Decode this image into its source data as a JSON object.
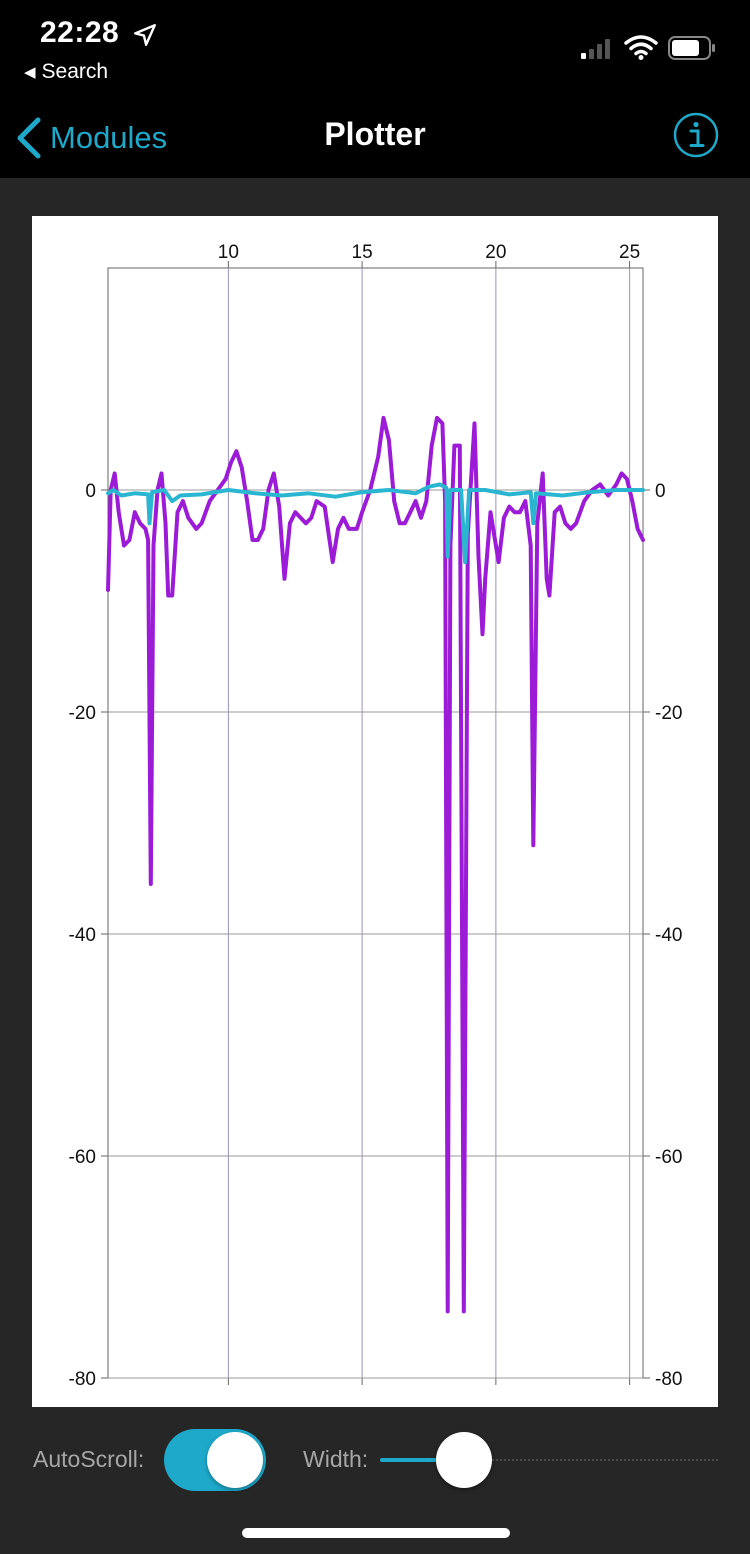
{
  "status_bar": {
    "time": "22:28",
    "back_app": "Search",
    "icons": [
      "location-arrow-icon",
      "cellular-signal-icon",
      "wifi-icon",
      "battery-icon"
    ]
  },
  "nav": {
    "back_label": "Modules",
    "title": "Plotter",
    "info_icon": "info-circle-icon"
  },
  "colors": {
    "accent": "#1ea8c9",
    "series_1": "#9b1bd6",
    "series_2": "#2ab6d0",
    "background": "#262626"
  },
  "chart_data": {
    "type": "line",
    "xlim": [
      5.5,
      25.5
    ],
    "ylim": [
      -80,
      20
    ],
    "x_ticks": [
      10,
      15,
      20,
      25
    ],
    "y_ticks": [
      0,
      -20,
      -40,
      -60,
      -80
    ],
    "x_tick_labels": [
      "10",
      "15",
      "20",
      "25"
    ],
    "y_tick_labels": [
      "0",
      "-20",
      "-40",
      "-60",
      "-80"
    ],
    "grid": true,
    "x_axis_position": "top",
    "y_axis_position": "left and right",
    "series": [
      {
        "color": "#9b1bd6",
        "points": [
          [
            5.5,
            -9
          ],
          [
            5.6,
            0
          ],
          [
            5.75,
            1.5
          ],
          [
            5.9,
            -2
          ],
          [
            6.1,
            -5
          ],
          [
            6.3,
            -4.5
          ],
          [
            6.5,
            -2
          ],
          [
            6.7,
            -3
          ],
          [
            6.9,
            -3.5
          ],
          [
            7.0,
            -4.5
          ],
          [
            7.1,
            -35.5
          ],
          [
            7.2,
            -5
          ],
          [
            7.35,
            0
          ],
          [
            7.5,
            1.5
          ],
          [
            7.65,
            -3
          ],
          [
            7.75,
            -9.5
          ],
          [
            7.9,
            -9.5
          ],
          [
            8.1,
            -2
          ],
          [
            8.3,
            -1
          ],
          [
            8.5,
            -2.5
          ],
          [
            8.8,
            -3.5
          ],
          [
            9.0,
            -3
          ],
          [
            9.3,
            -1
          ],
          [
            9.6,
            0
          ],
          [
            9.9,
            1
          ],
          [
            10.1,
            2.5
          ],
          [
            10.3,
            3.5
          ],
          [
            10.5,
            2
          ],
          [
            10.7,
            -1
          ],
          [
            10.9,
            -4.5
          ],
          [
            11.1,
            -4.5
          ],
          [
            11.3,
            -3.5
          ],
          [
            11.5,
            0
          ],
          [
            11.7,
            1.5
          ],
          [
            11.9,
            -1.5
          ],
          [
            12.1,
            -8
          ],
          [
            12.3,
            -3
          ],
          [
            12.5,
            -2
          ],
          [
            12.7,
            -2.5
          ],
          [
            12.9,
            -3
          ],
          [
            13.1,
            -2.5
          ],
          [
            13.3,
            -1
          ],
          [
            13.6,
            -1.5
          ],
          [
            13.9,
            -6.5
          ],
          [
            14.1,
            -3.5
          ],
          [
            14.3,
            -2.5
          ],
          [
            14.5,
            -3.5
          ],
          [
            14.8,
            -3.5
          ],
          [
            15.0,
            -2
          ],
          [
            15.3,
            0
          ],
          [
            15.6,
            3
          ],
          [
            15.8,
            6.5
          ],
          [
            16.0,
            4.5
          ],
          [
            16.2,
            -1
          ],
          [
            16.4,
            -3
          ],
          [
            16.6,
            -3
          ],
          [
            16.8,
            -2
          ],
          [
            17.0,
            -1
          ],
          [
            17.2,
            -2.5
          ],
          [
            17.4,
            -1
          ],
          [
            17.6,
            4
          ],
          [
            17.8,
            6.5
          ],
          [
            18.0,
            6
          ],
          [
            18.1,
            -1
          ],
          [
            18.2,
            -74
          ],
          [
            18.3,
            -5
          ],
          [
            18.45,
            4
          ],
          [
            18.65,
            4
          ],
          [
            18.8,
            -74
          ],
          [
            18.95,
            -4
          ],
          [
            19.2,
            6
          ],
          [
            19.35,
            -6
          ],
          [
            19.5,
            -13
          ],
          [
            19.6,
            -8
          ],
          [
            19.8,
            -2
          ],
          [
            20.1,
            -6.5
          ],
          [
            20.3,
            -2.5
          ],
          [
            20.5,
            -1.5
          ],
          [
            20.7,
            -2
          ],
          [
            20.9,
            -2
          ],
          [
            21.1,
            -1
          ],
          [
            21.3,
            -5
          ],
          [
            21.4,
            -32
          ],
          [
            21.55,
            -3
          ],
          [
            21.75,
            1.5
          ],
          [
            21.9,
            -8
          ],
          [
            22.0,
            -9.5
          ],
          [
            22.2,
            -2
          ],
          [
            22.4,
            -1.5
          ],
          [
            22.6,
            -3
          ],
          [
            22.8,
            -3.5
          ],
          [
            23.0,
            -3
          ],
          [
            23.3,
            -1
          ],
          [
            23.6,
            0
          ],
          [
            23.9,
            0.5
          ],
          [
            24.2,
            -0.5
          ],
          [
            24.5,
            0.5
          ],
          [
            24.7,
            1.5
          ],
          [
            24.9,
            1
          ],
          [
            25.1,
            -1
          ],
          [
            25.3,
            -3.5
          ],
          [
            25.5,
            -4.5
          ]
        ]
      },
      {
        "color": "#2ab6d0",
        "points": [
          [
            5.5,
            -0.3
          ],
          [
            5.7,
            0
          ],
          [
            6.0,
            -0.5
          ],
          [
            6.5,
            -0.3
          ],
          [
            7.0,
            -0.4
          ],
          [
            7.05,
            -3
          ],
          [
            7.15,
            -0.2
          ],
          [
            7.6,
            0
          ],
          [
            7.9,
            -1
          ],
          [
            8.2,
            -0.5
          ],
          [
            9.0,
            -0.4
          ],
          [
            10.0,
            0
          ],
          [
            11.0,
            -0.3
          ],
          [
            12.0,
            -0.5
          ],
          [
            13.0,
            -0.3
          ],
          [
            14.0,
            -0.6
          ],
          [
            15.0,
            -0.2
          ],
          [
            16.0,
            0
          ],
          [
            17.0,
            -0.3
          ],
          [
            17.5,
            0.3
          ],
          [
            17.9,
            0.5
          ],
          [
            18.15,
            0.2
          ],
          [
            18.2,
            -6
          ],
          [
            18.3,
            0
          ],
          [
            18.7,
            0
          ],
          [
            18.85,
            -6.5
          ],
          [
            19.0,
            0
          ],
          [
            19.6,
            0
          ],
          [
            20.5,
            -0.4
          ],
          [
            21.3,
            -0.2
          ],
          [
            21.4,
            -3
          ],
          [
            21.5,
            -0.3
          ],
          [
            22.5,
            -0.5
          ],
          [
            23.5,
            -0.2
          ],
          [
            24.5,
            0
          ],
          [
            25.5,
            0
          ]
        ]
      }
    ]
  },
  "controls": {
    "autoscroll_label": "AutoScroll:",
    "autoscroll_on": true,
    "width_label": "Width:",
    "width_value": 0.2
  }
}
